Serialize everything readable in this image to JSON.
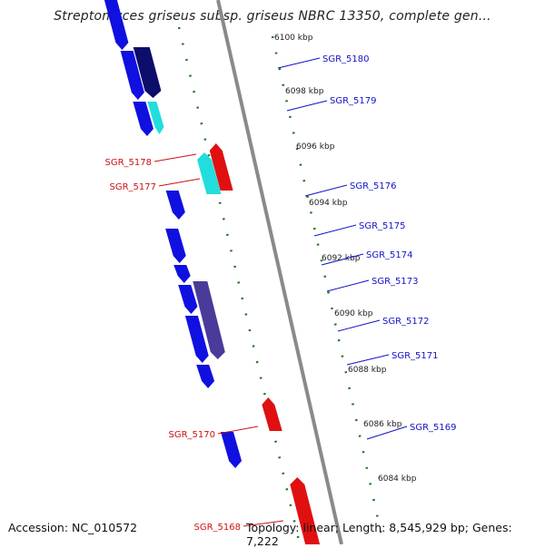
{
  "title": "Streptomyces griseus subsp. griseus NBRC 13350, complete gen...",
  "footer": {
    "accession": "Accession: NC_010572",
    "summary": "Topology: linear; Length: 8,545,929 bp; Genes: 7,222"
  },
  "colors": {
    "forward_gene": "#1010e0",
    "reverse_gene": "#e01010",
    "dark_block": "#0d0d6b",
    "cyan_block": "#22dddd",
    "purple_block": "#4a3a9a",
    "dotted_track": "#1a7a1a",
    "backbone": "#8a8a8a"
  },
  "kbp_ticks": [
    "6100 kbp",
    "6098 kbp",
    "6096 kbp",
    "6094 kbp",
    "6092 kbp",
    "6090 kbp",
    "6088 kbp",
    "6086 kbp",
    "6084 kbp"
  ],
  "genes": [
    {
      "label": "SGR_5180",
      "strand": "forward"
    },
    {
      "label": "SGR_5179",
      "strand": "forward"
    },
    {
      "label": "SGR_5178",
      "strand": "reverse"
    },
    {
      "label": "SGR_5177",
      "strand": "reverse"
    },
    {
      "label": "SGR_5176",
      "strand": "forward"
    },
    {
      "label": "SGR_5175",
      "strand": "forward"
    },
    {
      "label": "SGR_5174",
      "strand": "forward"
    },
    {
      "label": "SGR_5173",
      "strand": "forward"
    },
    {
      "label": "SGR_5172",
      "strand": "forward"
    },
    {
      "label": "SGR_5171",
      "strand": "forward"
    },
    {
      "label": "SGR_5170",
      "strand": "reverse"
    },
    {
      "label": "SGR_5169",
      "strand": "forward"
    },
    {
      "label": "SGR_5168",
      "strand": "reverse"
    }
  ]
}
